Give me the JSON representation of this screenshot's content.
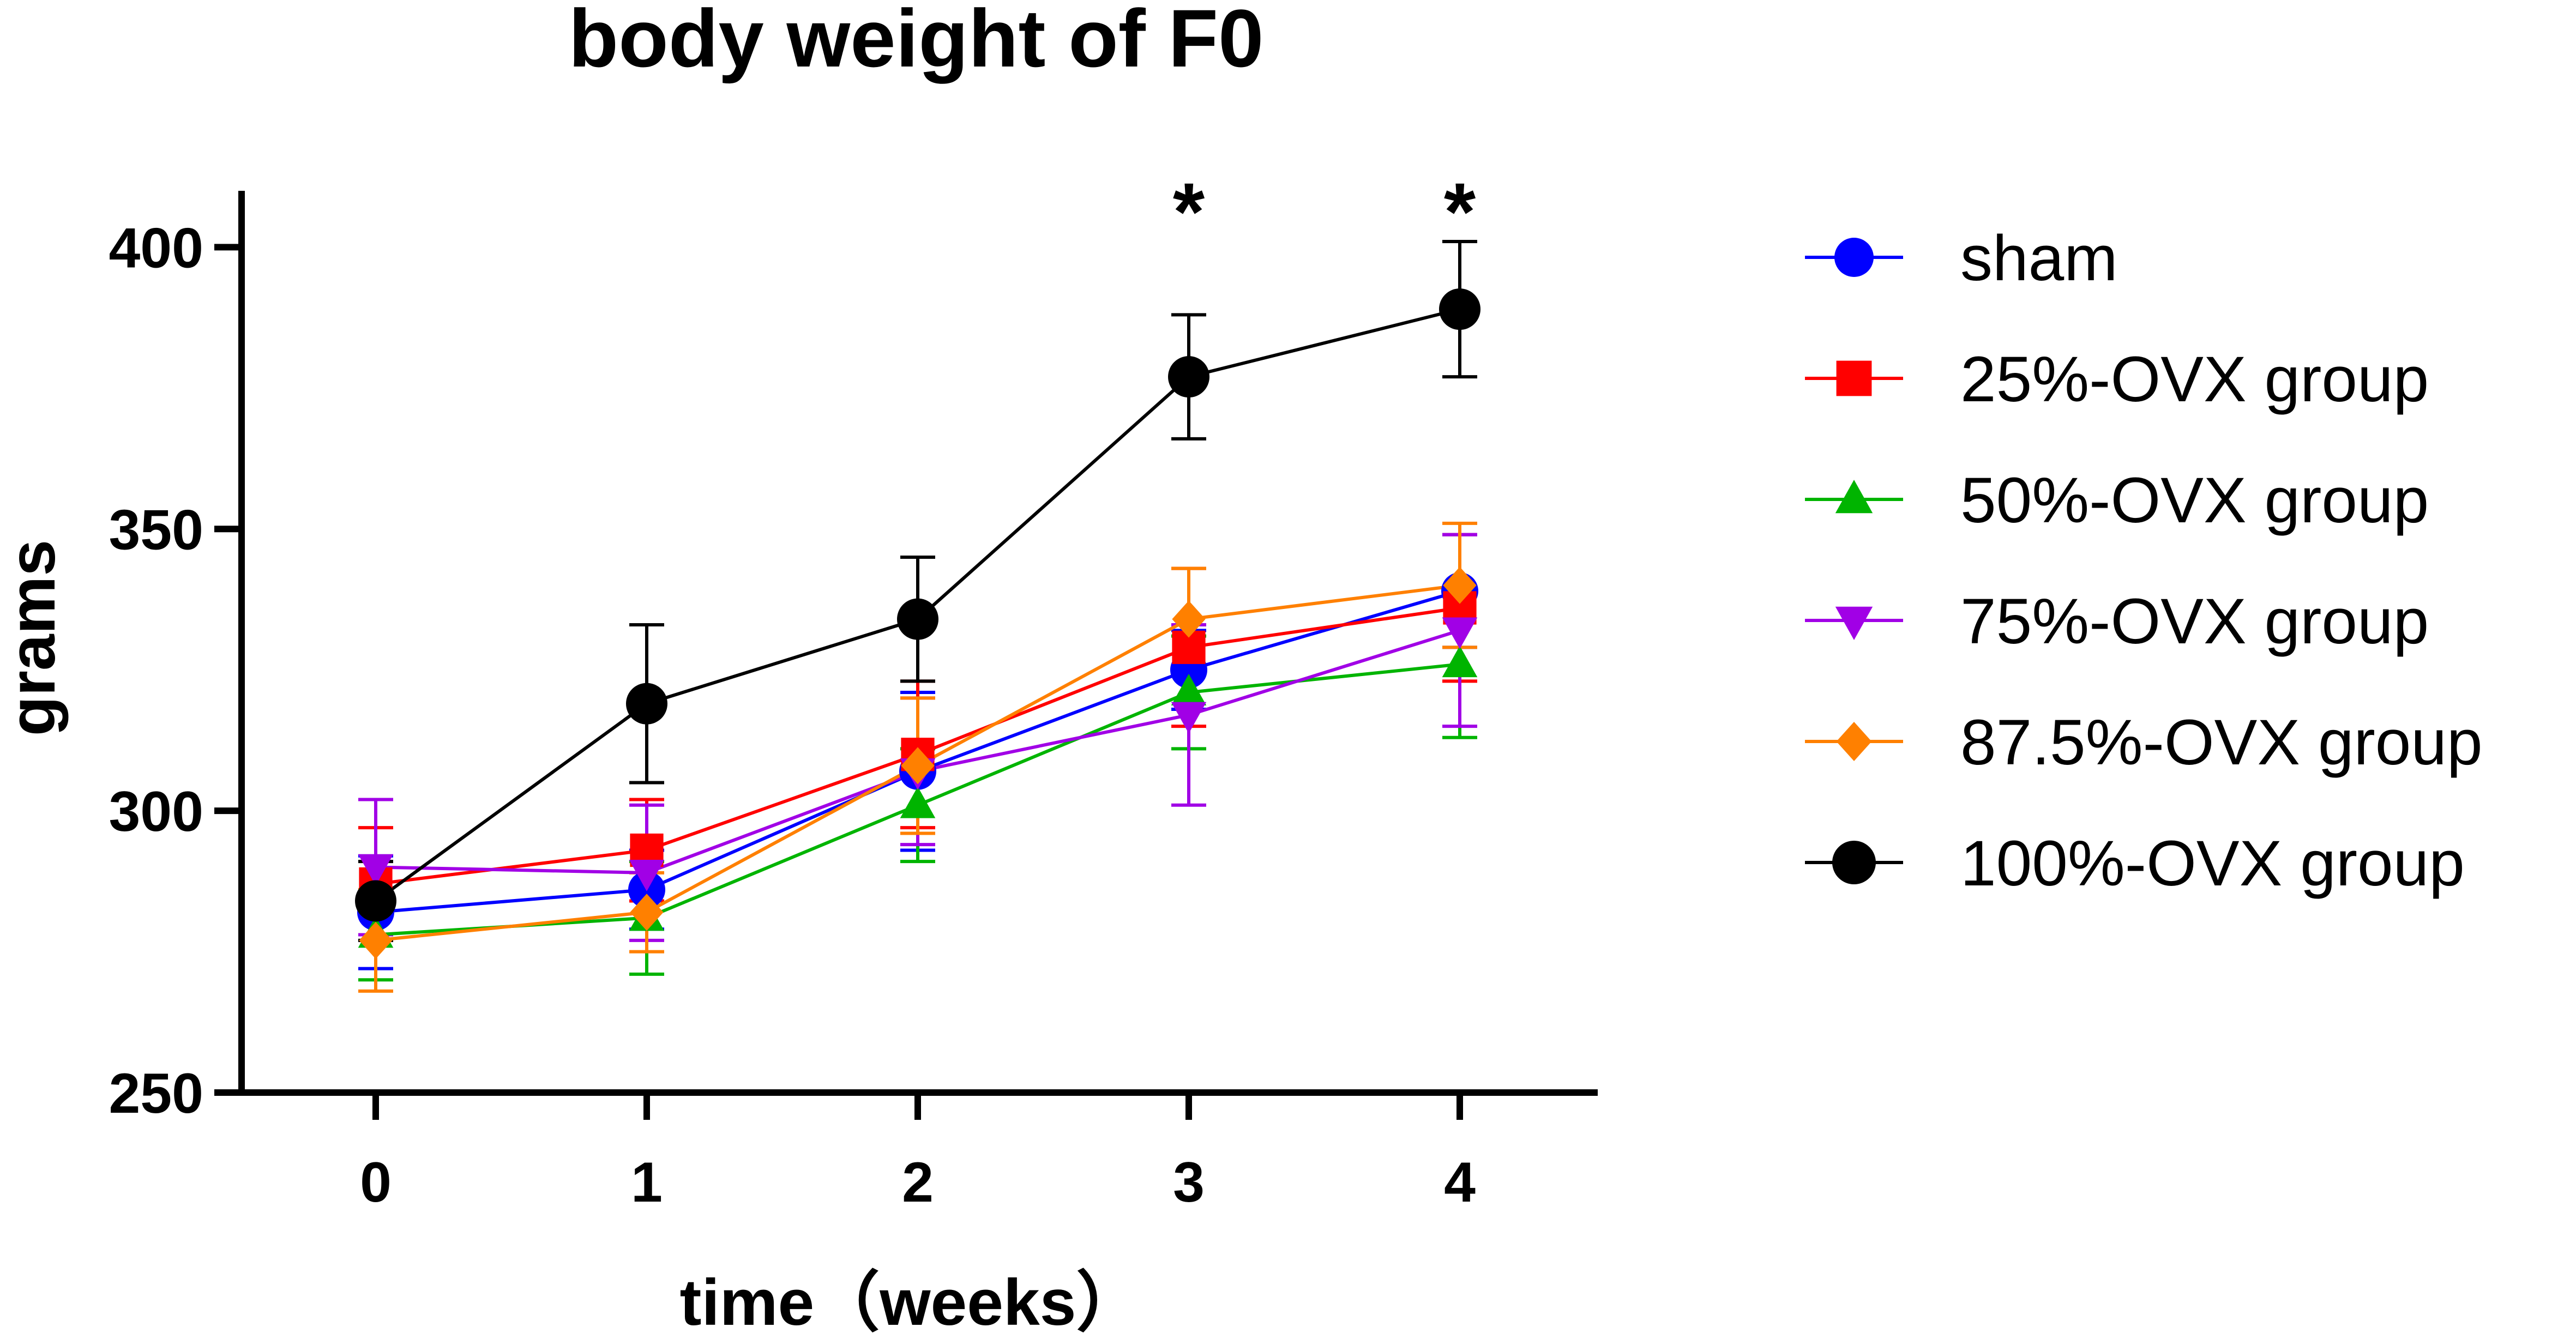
{
  "chart_data": {
    "type": "line",
    "title": "body weight of F0",
    "xlabel": "time（weeks）",
    "ylabel": "grams",
    "x": [
      0,
      1,
      2,
      3,
      4
    ],
    "x_tick_labels": [
      "0",
      "1",
      "2",
      "3",
      "4"
    ],
    "xlim": [
      -0.5,
      4.5
    ],
    "ylim": [
      250,
      410
    ],
    "y_ticks": [
      250,
      300,
      350,
      400
    ],
    "y_tick_labels": [
      "250",
      "300",
      "350",
      "400"
    ],
    "grid": false,
    "legend_position": "right",
    "error_bars": true,
    "series": [
      {
        "name": "sham",
        "color": "#0000ff",
        "marker": "circle",
        "values": [
          282,
          286,
          307,
          325,
          339
        ],
        "errors": [
          10,
          7,
          14,
          7,
          10
        ]
      },
      {
        "name": "25%-OVX group",
        "color": "#ff0000",
        "marker": "square",
        "values": [
          287,
          293,
          310,
          329,
          336
        ],
        "errors": [
          10,
          9,
          13,
          14,
          13
        ]
      },
      {
        "name": "50%-OVX group",
        "color": "#00b400",
        "marker": "triangle-up",
        "values": [
          278,
          281,
          301,
          321,
          326
        ],
        "errors": [
          8,
          10,
          10,
          10,
          13
        ]
      },
      {
        "name": "75%-OVX group",
        "color": "#a100e6",
        "marker": "triangle-down",
        "values": [
          290,
          289,
          307,
          317,
          332
        ],
        "errors": [
          12,
          12,
          13,
          16,
          17
        ]
      },
      {
        "name": "87.5%-OVX group",
        "color": "#ff8000",
        "marker": "diamond",
        "values": [
          277,
          282,
          308,
          334,
          340
        ],
        "errors": [
          9,
          7,
          12,
          9,
          11
        ]
      },
      {
        "name": "100%-OVX group",
        "color": "#000000",
        "marker": "circle",
        "values": [
          284,
          319,
          334,
          377,
          389
        ],
        "errors": [
          7,
          14,
          11,
          11,
          12
        ]
      }
    ],
    "annotations": [
      {
        "x": 3,
        "text": "*"
      },
      {
        "x": 4,
        "text": "*"
      }
    ]
  }
}
